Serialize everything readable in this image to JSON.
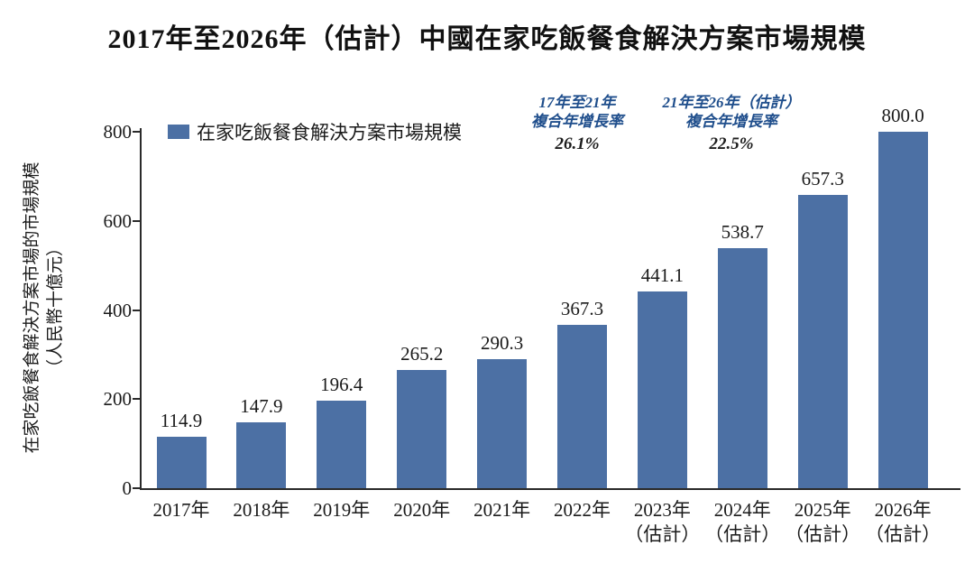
{
  "chart_data": {
    "type": "bar",
    "title": "2017年至2026年（估計）中國在家吃飯餐食解決方案市場規模",
    "series_name": "在家吃飯餐食解決方案市場規模",
    "categories": [
      "2017年",
      "2018年",
      "2019年",
      "2020年",
      "2021年",
      "2022年",
      "2023年\n（估計）",
      "2024年\n（估計）",
      "2025年\n（估計）",
      "2026年\n（估計）"
    ],
    "values": [
      114.9,
      147.9,
      196.4,
      265.2,
      290.3,
      367.3,
      441.1,
      538.7,
      657.3,
      800.0
    ],
    "value_label_decimals": 1,
    "xlabel": "",
    "ylabel_line1": "在家吃飯餐食解決方案市場的市場規模",
    "ylabel_line2": "（人民幣十億元）",
    "yticks": [
      0,
      200,
      400,
      600,
      800
    ],
    "ylim": [
      0,
      800
    ],
    "grid": false,
    "legend_position": "top-left",
    "annotations": [
      {
        "line1": "17年至21年",
        "line2": "複合年增長率",
        "value": "26.1%"
      },
      {
        "line1": "21年至26年（估計）",
        "line2": "複合年增長率",
        "value": "22.5%"
      }
    ],
    "colors": {
      "bar": "#4C70A4",
      "annotation_heading": "#1F4E8C",
      "annotation_value": "#1C1C1C",
      "axis": "#2A2A2A",
      "text": "#1A1A1A",
      "background": "#FFFFFF"
    }
  }
}
